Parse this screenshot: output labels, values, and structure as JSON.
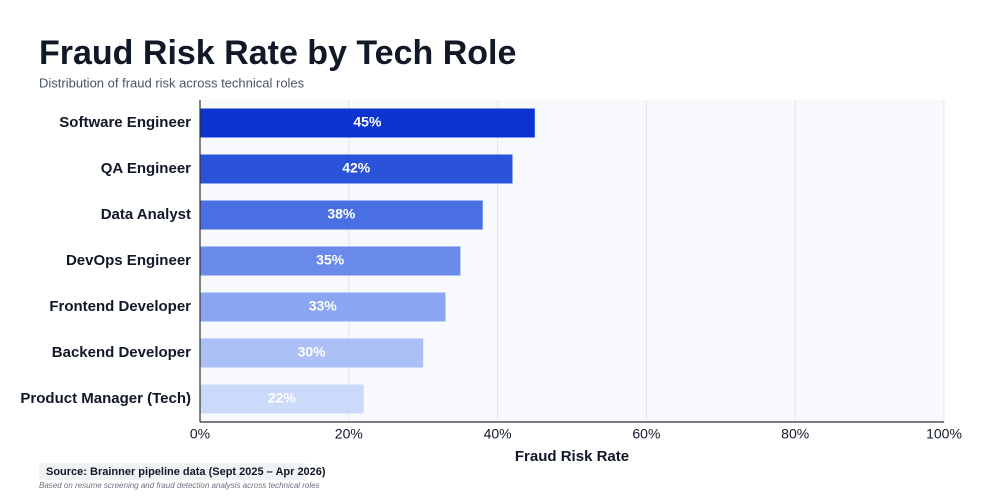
{
  "chart_data": {
    "type": "bar",
    "orientation": "horizontal",
    "title": "Fraud Risk Rate by Tech Role",
    "subtitle": "Distribution of fraud risk across technical roles",
    "categories": [
      "Software Engineer",
      "QA Engineer",
      "Data Analyst",
      "DevOps Engineer",
      "Frontend Developer",
      "Backend Developer",
      "Product Manager (Tech)"
    ],
    "values": [
      45,
      42,
      38,
      35,
      33,
      30,
      22
    ],
    "value_labels": [
      "45%",
      "42%",
      "38%",
      "35%",
      "33%",
      "30%",
      "22%"
    ],
    "colors": [
      "#0b34d0",
      "#2a53da",
      "#4a6fe2",
      "#6a8ae9",
      "#8ba6f0",
      "#abc0f6",
      "#cbdafb"
    ],
    "xlim": [
      0,
      100
    ],
    "xticks": [
      {
        "value": 0,
        "label": "0%"
      },
      {
        "value": 20,
        "label": "20%"
      },
      {
        "value": 40,
        "label": "40%"
      },
      {
        "value": 60,
        "label": "60%"
      },
      {
        "value": 80,
        "label": "80%"
      },
      {
        "value": 100,
        "label": "100%"
      }
    ],
    "x_label": "Fraud Risk Rate",
    "grid": true,
    "source": "Source: Brainner pipeline data (Sept 2025 – Apr 2026)",
    "note": "Based on resume screening and fraud detection analysis across technical roles"
  }
}
